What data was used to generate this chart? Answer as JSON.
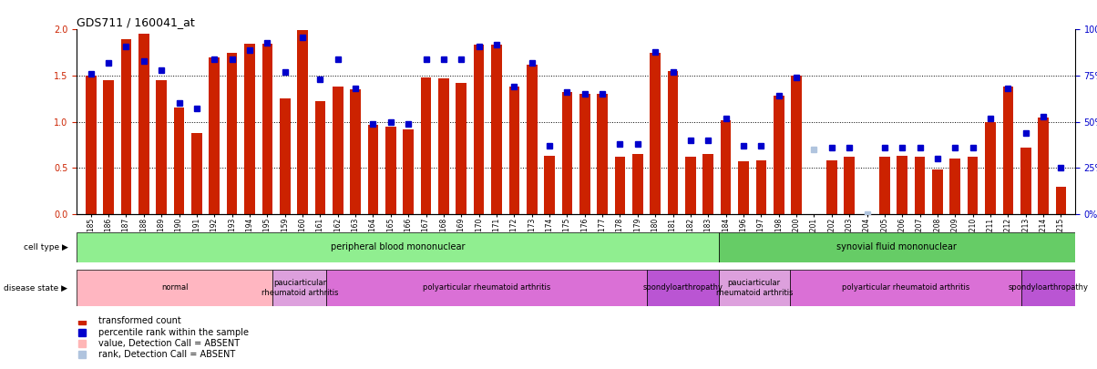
{
  "title": "GDS711 / 160041_at",
  "samples": [
    "GSM23185",
    "GSM23186",
    "GSM23187",
    "GSM23188",
    "GSM23189",
    "GSM23190",
    "GSM23191",
    "GSM23192",
    "GSM23193",
    "GSM23194",
    "GSM23195",
    "GSM23159",
    "GSM23160",
    "GSM23161",
    "GSM23162",
    "GSM23163",
    "GSM23164",
    "GSM23165",
    "GSM23166",
    "GSM23167",
    "GSM23168",
    "GSM23169",
    "GSM23170",
    "GSM23171",
    "GSM23172",
    "GSM23173",
    "GSM23174",
    "GSM23175",
    "GSM23176",
    "GSM23177",
    "GSM23178",
    "GSM23179",
    "GSM23180",
    "GSM23181",
    "GSM23182",
    "GSM23183",
    "GSM23184",
    "GSM23196",
    "GSM23197",
    "GSM23198",
    "GSM23200",
    "GSM22201",
    "GSM23202",
    "GSM23203",
    "GSM23204",
    "GSM23205",
    "GSM23206",
    "GSM23207",
    "GSM23208",
    "GSM23209",
    "GSM23210",
    "GSM23211",
    "GSM23212",
    "GSM23213",
    "GSM23214",
    "GSM23215"
  ],
  "red_values": [
    1.5,
    1.45,
    1.9,
    1.95,
    1.45,
    1.15,
    0.88,
    1.7,
    1.75,
    1.85,
    1.85,
    1.25,
    1.99,
    1.22,
    1.38,
    1.35,
    0.97,
    0.95,
    0.92,
    1.48,
    1.47,
    1.42,
    1.84,
    1.84,
    1.38,
    1.62,
    0.63,
    1.32,
    1.3,
    1.3,
    0.62,
    0.65,
    1.75,
    1.55,
    0.62,
    0.65,
    1.02,
    0.57,
    0.58,
    1.28,
    1.5,
    0.0,
    0.58,
    0.62,
    0.0,
    0.62,
    0.63,
    0.62,
    0.48,
    0.6,
    0.62,
    1.0,
    1.38,
    0.72,
    1.05,
    0.3
  ],
  "blue_values": [
    0.76,
    0.82,
    0.91,
    0.83,
    0.78,
    0.6,
    0.57,
    0.84,
    0.84,
    0.89,
    0.93,
    0.77,
    0.96,
    0.73,
    0.84,
    0.68,
    0.49,
    0.5,
    0.49,
    0.84,
    0.84,
    0.84,
    0.91,
    0.92,
    0.69,
    0.82,
    0.37,
    0.66,
    0.65,
    0.65,
    0.38,
    0.38,
    0.88,
    0.77,
    0.4,
    0.4,
    0.52,
    0.37,
    0.37,
    0.64,
    0.74,
    0.35,
    0.36,
    0.36,
    0.0,
    0.36,
    0.36,
    0.36,
    0.3,
    0.36,
    0.36,
    0.52,
    0.68,
    0.44,
    0.53,
    0.25
  ],
  "absent_red": [
    false,
    false,
    false,
    false,
    false,
    false,
    false,
    false,
    false,
    false,
    false,
    false,
    false,
    false,
    false,
    false,
    false,
    false,
    false,
    false,
    false,
    false,
    false,
    false,
    false,
    false,
    false,
    false,
    false,
    false,
    false,
    false,
    false,
    false,
    false,
    false,
    false,
    false,
    false,
    false,
    false,
    true,
    false,
    false,
    true,
    false,
    false,
    false,
    false,
    false,
    false,
    false,
    false,
    false,
    false,
    false
  ],
  "absent_blue": [
    false,
    false,
    false,
    false,
    false,
    false,
    false,
    false,
    false,
    false,
    false,
    false,
    false,
    false,
    false,
    false,
    false,
    false,
    false,
    false,
    false,
    false,
    false,
    false,
    false,
    false,
    false,
    false,
    false,
    false,
    false,
    false,
    false,
    false,
    false,
    false,
    false,
    false,
    false,
    false,
    false,
    true,
    false,
    false,
    true,
    false,
    false,
    false,
    false,
    false,
    false,
    false,
    false,
    false,
    false,
    false
  ],
  "ylim_left": [
    0,
    2.0
  ],
  "ylim_right": [
    0,
    100
  ],
  "yticks_left": [
    0,
    0.5,
    1.0,
    1.5,
    2.0
  ],
  "yticks_right": [
    0,
    25,
    50,
    75,
    100
  ],
  "cell_type_groups": [
    {
      "label": "peripheral blood mononuclear",
      "start": 0,
      "end": 36,
      "color": "#90EE90"
    },
    {
      "label": "synovial fluid mononuclear",
      "start": 36,
      "end": 56,
      "color": "#66CC66"
    }
  ],
  "disease_state_groups": [
    {
      "label": "normal",
      "start": 0,
      "end": 11,
      "color": "#FFB6C1"
    },
    {
      "label": "pauciarticular\nrheumatoid arthritis",
      "start": 11,
      "end": 14,
      "color": "#DDA0DD"
    },
    {
      "label": "polyarticular rheumatoid arthritis",
      "start": 14,
      "end": 32,
      "color": "#DA70D6"
    },
    {
      "label": "spondyloarthropathy",
      "start": 32,
      "end": 36,
      "color": "#BA55D3"
    },
    {
      "label": "pauciarticular\nrheumatoid arthritis",
      "start": 36,
      "end": 40,
      "color": "#DDA0DD"
    },
    {
      "label": "polyarticular rheumatoid arthritis",
      "start": 40,
      "end": 53,
      "color": "#DA70D6"
    },
    {
      "label": "spondyloarthropathy",
      "start": 53,
      "end": 56,
      "color": "#BA55D3"
    }
  ],
  "red_color": "#CC2200",
  "blue_color": "#0000CC",
  "absent_red_color": "#FFB6B6",
  "absent_blue_color": "#B0C4DE",
  "bar_width": 0.6
}
